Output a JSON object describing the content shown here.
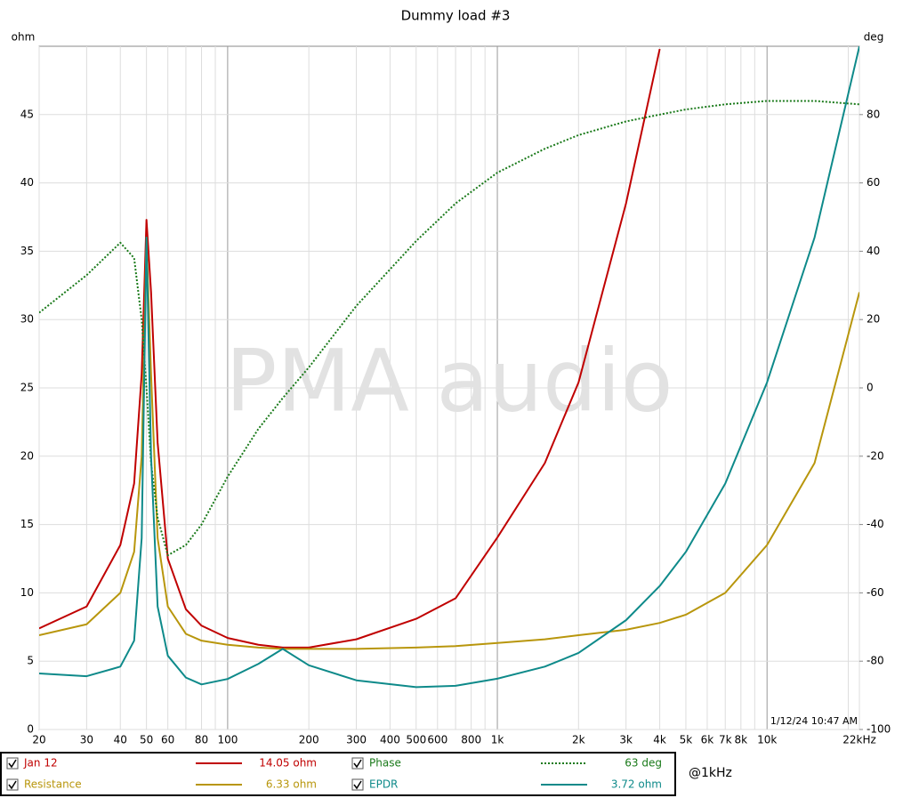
{
  "chart_data": {
    "type": "line",
    "title": "Dummy load #3",
    "ylabel": "ohm",
    "y2label": "deg",
    "watermark": "PMA audio",
    "timestamp": "1/12/24 10:47 AM",
    "readout_frequency": "@1kHz",
    "xscale": "log",
    "grid": true,
    "xlim": [
      20,
      22000
    ],
    "xticks": [
      20,
      30,
      40,
      50,
      60,
      80,
      100,
      200,
      300,
      400,
      500,
      600,
      800,
      {
        "value": 1000,
        "label": "1k"
      },
      {
        "value": 2000,
        "label": "2k"
      },
      {
        "value": 3000,
        "label": "3k"
      },
      {
        "value": 4000,
        "label": "4k"
      },
      {
        "value": 5000,
        "label": "5k"
      },
      {
        "value": 6000,
        "label": "6k"
      },
      {
        "value": 7000,
        "label": "7k"
      },
      {
        "value": 8000,
        "label": "8k"
      },
      {
        "value": 10000,
        "label": "10k"
      },
      {
        "value": 22000,
        "label": "22kHz"
      }
    ],
    "ylim": [
      0,
      50
    ],
    "yticks": [
      0,
      5,
      10,
      15,
      20,
      25,
      30,
      35,
      40,
      45
    ],
    "y2lim": [
      -100,
      100
    ],
    "y2ticks": [
      -100,
      -80,
      -60,
      -40,
      -20,
      0,
      20,
      40,
      60,
      80
    ],
    "x": [
      20,
      30,
      40,
      45,
      48,
      50,
      52,
      55,
      60,
      70,
      80,
      100,
      130,
      160,
      200,
      300,
      500,
      700,
      1000,
      1500,
      2000,
      3000,
      4000,
      5000,
      7000,
      10000,
      15000,
      22000
    ],
    "series": [
      {
        "name": "Jan 12",
        "color": "#c00000",
        "style": "solid",
        "readout": "14.05 ohm",
        "values": [
          7.4,
          9,
          13.5,
          18,
          26,
          37.3,
          32,
          21,
          12.5,
          8.8,
          7.6,
          6.7,
          6.2,
          6.0,
          6.0,
          6.6,
          8.1,
          9.6,
          14.05,
          19.5,
          25.4,
          38.5,
          49.8,
          null,
          null,
          null,
          null,
          null
        ]
      },
      {
        "name": "Resistance",
        "color": "#b8960c",
        "style": "solid",
        "readout": "6.33 ohm",
        "values": [
          6.9,
          7.7,
          10,
          13,
          20,
          36,
          26,
          14,
          9,
          7,
          6.5,
          6.2,
          6.0,
          5.9,
          5.9,
          5.9,
          6.0,
          6.1,
          6.33,
          6.6,
          6.9,
          7.3,
          7.8,
          8.4,
          10,
          13.5,
          19.5,
          32
        ]
      },
      {
        "name": "Phase",
        "color": "#1a7a1a",
        "style": "dotted",
        "axis": "y2",
        "readout": "63 deg",
        "values": [
          22,
          33,
          42.5,
          38,
          20,
          0,
          -22,
          -38,
          -49,
          -46,
          -40,
          -26,
          -12,
          -3,
          6,
          24,
          43,
          54,
          63,
          70,
          74,
          78,
          80,
          81.5,
          83,
          84,
          84,
          83
        ]
      },
      {
        "name": "EPDR",
        "color": "#0e8a8a",
        "style": "solid",
        "readout": "3.72 ohm",
        "values": [
          4.1,
          3.9,
          4.6,
          6.5,
          14,
          36,
          20,
          9,
          5.4,
          3.8,
          3.3,
          3.7,
          4.8,
          5.9,
          4.7,
          3.6,
          3.1,
          3.2,
          3.72,
          4.6,
          5.6,
          8.0,
          10.5,
          13,
          18,
          25.4,
          36,
          50
        ]
      }
    ]
  }
}
